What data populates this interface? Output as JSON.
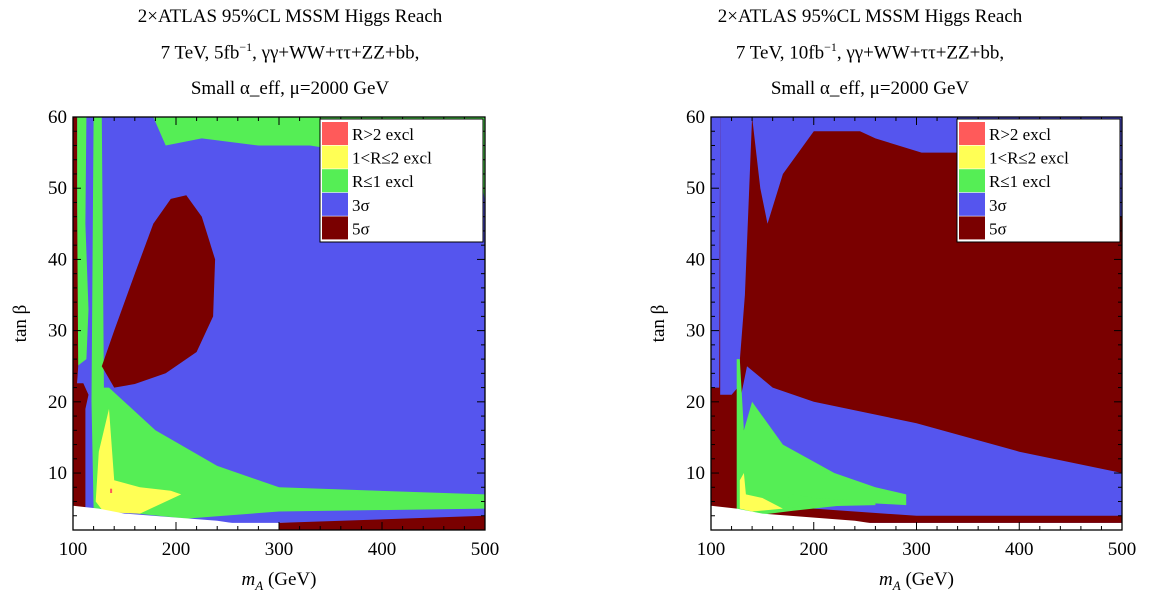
{
  "colors": {
    "r_gt2": "#ff5a5a",
    "r_1to2": "#ffff55",
    "r_le1": "#55ee55",
    "sigma3": "#5555ee",
    "sigma5": "#7a0000",
    "white": "#ffffff"
  },
  "chart_data": [
    {
      "type": "heatmap",
      "title": {
        "line1": "2×ATLAS 95%CL MSSM Higgs Reach",
        "line2_prefix": "7 TeV, 5fb",
        "line2_sup": "−1",
        "line2_suffix": ", γγ+WW+ττ+ZZ+bb,",
        "line3": "Small α_eff, μ=2000 GeV"
      },
      "xlabel": "m_A (GeV)",
      "ylabel": "tan β",
      "xlim": [
        100,
        500
      ],
      "ylim": [
        2,
        60
      ],
      "xticks": [
        "100",
        "200",
        "300",
        "400",
        "500"
      ],
      "yticks": [
        "10",
        "20",
        "30",
        "40",
        "50",
        "60"
      ],
      "legend": [
        "R>2 excl",
        "1<R≤2 excl",
        "R≤1 excl",
        "3σ",
        "5σ"
      ],
      "legend_position": "top-right",
      "regions": [
        {
          "class": "sigma3",
          "points": [
            [
              104,
              60
            ],
            [
              500,
              60
            ],
            [
              500,
              3
            ],
            [
              104,
              3
            ]
          ]
        },
        {
          "class": "r_le1",
          "points": [
            [
              178,
              60
            ],
            [
              190,
              56
            ],
            [
              225,
              57
            ],
            [
              280,
              56
            ],
            [
              330,
              56
            ],
            [
              375,
              55
            ],
            [
              415,
              54
            ],
            [
              460,
              53
            ],
            [
              496,
              52
            ],
            [
              500,
              48
            ],
            [
              500,
              60
            ]
          ]
        },
        {
          "class": "r_le1",
          "points": [
            [
              104,
              60
            ],
            [
              113,
              60
            ],
            [
              112,
              45
            ],
            [
              115,
              33
            ],
            [
              113,
              26
            ],
            [
              104,
              25
            ]
          ]
        },
        {
          "class": "r_le1",
          "points": [
            [
              120,
              60
            ],
            [
              128,
              60
            ],
            [
              130,
              22
            ],
            [
              135,
              22
            ],
            [
              180,
              16
            ],
            [
              240,
              11
            ],
            [
              300,
              8
            ],
            [
              500,
              7
            ],
            [
              500,
              5
            ],
            [
              300,
              4.6
            ],
            [
              210,
              3.6
            ],
            [
              150,
              4.5
            ],
            [
              120,
              5
            ],
            [
              118,
              20
            ]
          ]
        },
        {
          "class": "sigma5",
          "points": [
            [
              128,
              25
            ],
            [
              140,
              30
            ],
            [
              160,
              38
            ],
            [
              178,
              45
            ],
            [
              195,
              48.5
            ],
            [
              210,
              49
            ],
            [
              225,
              46
            ],
            [
              238,
              40
            ],
            [
              236,
              32
            ],
            [
              220,
              27
            ],
            [
              190,
              24
            ],
            [
              160,
              22.5
            ],
            [
              140,
              22
            ]
          ]
        },
        {
          "class": "sigma5",
          "points": [
            [
              100,
              60
            ],
            [
              104,
              60
            ],
            [
              104,
              48
            ],
            [
              105,
              25
            ],
            [
              104,
              22.6
            ],
            [
              110,
              22.6
            ],
            [
              115,
              21
            ],
            [
              112,
              19
            ],
            [
              112,
              5
            ],
            [
              100,
              5
            ]
          ]
        },
        {
          "class": "sigma5",
          "points": [
            [
              300,
              2
            ],
            [
              500,
              2
            ],
            [
              500,
              4
            ],
            [
              300,
              3
            ]
          ]
        },
        {
          "class": "r_1to2",
          "points": [
            [
              125,
              13
            ],
            [
              135,
              19
            ],
            [
              140,
              9
            ],
            [
              165,
              8
            ],
            [
              195,
              7.5
            ],
            [
              205,
              7
            ],
            [
              165,
              4.3
            ],
            [
              130,
              4.5
            ],
            [
              122,
              6
            ]
          ]
        },
        {
          "class": "r_gt2",
          "points": [
            [
              136,
              7.2
            ],
            [
              138,
              7.2
            ],
            [
              138,
              7.8
            ],
            [
              136,
              7.8
            ]
          ]
        },
        {
          "class": "white",
          "points": [
            [
              100,
              2
            ],
            [
              300,
              2
            ],
            [
              240,
              3.3
            ],
            [
              150,
              4.3
            ],
            [
              125,
              5
            ],
            [
              100,
              5.4
            ]
          ]
        }
      ]
    },
    {
      "type": "heatmap",
      "title": {
        "line1": "2×ATLAS 95%CL MSSM Higgs Reach",
        "line2_prefix": "7 TeV, 10fb",
        "line2_sup": "−1",
        "line2_suffix": ", γγ+WW+ττ+ZZ+bb,",
        "line3": "Small α_eff, μ=2000 GeV"
      },
      "xlabel": "m_A (GeV)",
      "ylabel": "tan β",
      "xlim": [
        100,
        500
      ],
      "ylim": [
        2,
        60
      ],
      "xticks": [
        "100",
        "200",
        "300",
        "400",
        "500"
      ],
      "yticks": [
        "10",
        "20",
        "30",
        "40",
        "50",
        "60"
      ],
      "legend": [
        "R>2 excl",
        "1<R≤2 excl",
        "R≤1 excl",
        "3σ",
        "5σ"
      ],
      "legend_position": "top-right",
      "regions": [
        {
          "class": "sigma3",
          "points": [
            [
              100,
              60
            ],
            [
              500,
              60
            ],
            [
              500,
              3
            ],
            [
              100,
              3
            ]
          ]
        },
        {
          "class": "sigma5",
          "points": [
            [
              140,
              60
            ],
            [
              148,
              50
            ],
            [
              155,
              45
            ],
            [
              170,
              52
            ],
            [
              200,
              58
            ],
            [
              245,
              58
            ],
            [
              260,
              57
            ],
            [
              305,
              55
            ],
            [
              350,
              55
            ],
            [
              375,
              51
            ],
            [
              412,
              47
            ],
            [
              440,
              47
            ],
            [
              475,
              47
            ],
            [
              500,
              46
            ],
            [
              500,
              3
            ],
            [
              100,
              3
            ],
            [
              100,
              22
            ],
            [
              108,
              22
            ],
            [
              109,
              60
            ]
          ]
        },
        {
          "class": "sigma3",
          "points": [
            [
              135,
              25
            ],
            [
              160,
              22
            ],
            [
              200,
              20
            ],
            [
              300,
              17
            ],
            [
              400,
              13
            ],
            [
              500,
              10
            ],
            [
              500,
              4
            ],
            [
              300,
              4
            ],
            [
              200,
              5
            ],
            [
              140,
              8
            ],
            [
              128,
              20
            ]
          ]
        },
        {
          "class": "sigma3",
          "points": [
            [
              109,
              60
            ],
            [
              140,
              60
            ],
            [
              133,
              35
            ],
            [
              126,
              22
            ],
            [
              120,
              21
            ],
            [
              109,
              21
            ]
          ]
        },
        {
          "class": "r_le1",
          "points": [
            [
              125,
              26
            ],
            [
              128,
              26
            ],
            [
              132,
              16
            ],
            [
              140,
              20
            ],
            [
              170,
              14
            ],
            [
              220,
              10
            ],
            [
              260,
              8
            ],
            [
              290,
              7
            ],
            [
              290,
              5.5
            ],
            [
              250,
              5.8
            ],
            [
              180,
              4.7
            ],
            [
              140,
              4
            ],
            [
              125,
              5
            ]
          ]
        },
        {
          "class": "r_1to2",
          "points": [
            [
              128,
              9
            ],
            [
              132,
              10
            ],
            [
              134,
              7
            ],
            [
              150,
              6.5
            ],
            [
              170,
              5
            ],
            [
              140,
              4.6
            ],
            [
              128,
              5
            ]
          ]
        },
        {
          "class": "r_le1",
          "points": [
            [
              170,
              6
            ],
            [
              180,
              7
            ],
            [
              200,
              6.5
            ],
            [
              260,
              6
            ],
            [
              260,
              5.5
            ],
            [
              200,
              5.3
            ],
            [
              175,
              5.2
            ]
          ]
        },
        {
          "class": "white",
          "points": [
            [
              100,
              2
            ],
            [
              300,
              2
            ],
            [
              240,
              3.3
            ],
            [
              150,
              4.3
            ],
            [
              125,
              5
            ],
            [
              100,
              5.4
            ]
          ]
        }
      ]
    }
  ]
}
